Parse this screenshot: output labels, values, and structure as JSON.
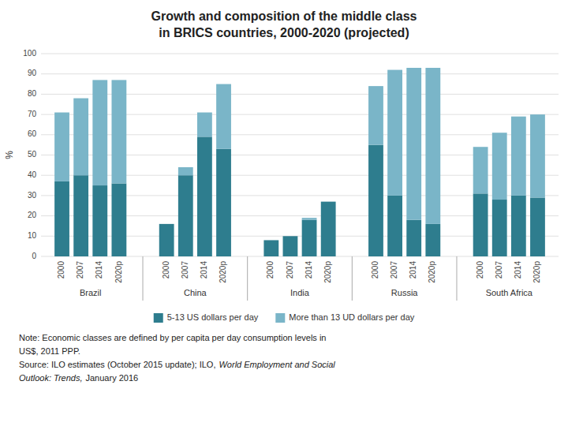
{
  "chart_data": {
    "type": "bar",
    "stacked": true,
    "title": "Growth and composition of the middle class",
    "subtitle": "in BRICS countries, 2000-2020 (projected)",
    "categories": [
      "2000",
      "2007",
      "2014",
      "2020p",
      "2000",
      "2007",
      "2014",
      "2020p",
      "2000",
      "2007",
      "2014",
      "2020p",
      "2000",
      "2007",
      "2014",
      "2020p",
      "2000",
      "2007",
      "2014",
      "2020p"
    ],
    "group_labels": [
      "Brazil",
      "China",
      "India",
      "Russia",
      "South Africa"
    ],
    "series": [
      {
        "name": "5-13 US dollars per day",
        "color": "#2e7d8e",
        "values": [
          37,
          40,
          35,
          36,
          16,
          40,
          59,
          53,
          8,
          10,
          18,
          27,
          55,
          30,
          18,
          16,
          31,
          28,
          30,
          29
        ]
      },
      {
        "name": "More than 13 UD dollars per day",
        "color": "#7ab5c8",
        "values": [
          34,
          38,
          52,
          51,
          0,
          4,
          12,
          32,
          0,
          0,
          1,
          0,
          29,
          62,
          75,
          77,
          23,
          33,
          39,
          41
        ]
      }
    ],
    "ylabel": "%",
    "ylim": [
      0,
      100
    ],
    "yticks": [
      0,
      10,
      20,
      30,
      40,
      50,
      60,
      70,
      80,
      90,
      100
    ],
    "grid": true,
    "legend": "bottom",
    "notes": [
      "Note: Economic classes are defined by per capita per day consumption levels in",
      "US$, 2011 PPP.",
      "Source: ILO estimates (October 2015 update); ILO,",
      "World Employment and Social",
      "Outlook: Trends,",
      "January 2016"
    ]
  }
}
